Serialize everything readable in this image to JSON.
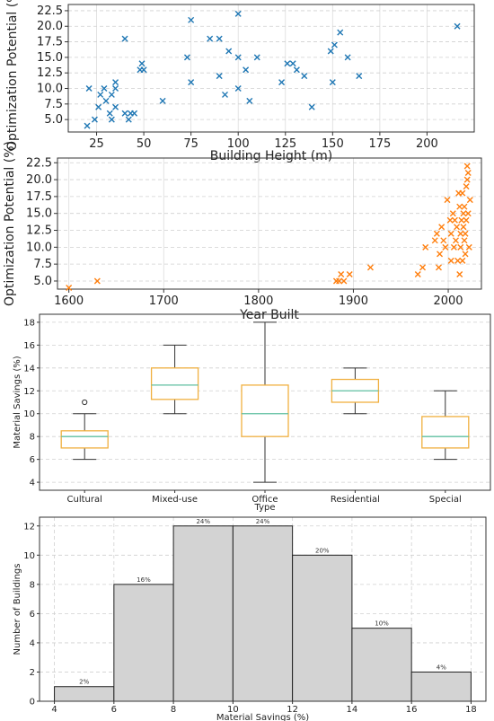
{
  "chart_data": [
    {
      "type": "scatter",
      "xlabel": "Building Height (m)",
      "ylabel": "Optimization Potential (%)",
      "xlim": [
        10,
        225
      ],
      "ylim": [
        3,
        23.5
      ],
      "xticks": [
        25,
        50,
        75,
        100,
        125,
        150,
        175,
        200
      ],
      "yticks": [
        5.0,
        7.5,
        10.0,
        12.5,
        15.0,
        17.5,
        20.0,
        22.5
      ],
      "color": "#1f77b4",
      "marker": "x",
      "points": [
        [
          20,
          4
        ],
        [
          21,
          10
        ],
        [
          24,
          5
        ],
        [
          26,
          7
        ],
        [
          27,
          9
        ],
        [
          29,
          10
        ],
        [
          30,
          8
        ],
        [
          32,
          6
        ],
        [
          33,
          5
        ],
        [
          33,
          9
        ],
        [
          35,
          11
        ],
        [
          35,
          10
        ],
        [
          35,
          7
        ],
        [
          40,
          18
        ],
        [
          40,
          6
        ],
        [
          42,
          5
        ],
        [
          43,
          6
        ],
        [
          45,
          6
        ],
        [
          48,
          13
        ],
        [
          49,
          14
        ],
        [
          50,
          13
        ],
        [
          60,
          8
        ],
        [
          73,
          15
        ],
        [
          75,
          21
        ],
        [
          75,
          11
        ],
        [
          85,
          18
        ],
        [
          90,
          18
        ],
        [
          90,
          12
        ],
        [
          93,
          9
        ],
        [
          95,
          16
        ],
        [
          100,
          22
        ],
        [
          100,
          15
        ],
        [
          100,
          10
        ],
        [
          104,
          13
        ],
        [
          106,
          8
        ],
        [
          110,
          15
        ],
        [
          123,
          11
        ],
        [
          126,
          14
        ],
        [
          129,
          14
        ],
        [
          131,
          13
        ],
        [
          135,
          12
        ],
        [
          139,
          7
        ],
        [
          149,
          16
        ],
        [
          150,
          11
        ],
        [
          151,
          17
        ],
        [
          154,
          19
        ],
        [
          158,
          15
        ],
        [
          164,
          12
        ],
        [
          216,
          20
        ]
      ]
    },
    {
      "type": "scatter",
      "xlabel": "Year Built",
      "ylabel": "Optimization Potential (%)",
      "xlim": [
        1588,
        2035
      ],
      "ylim": [
        3.8,
        23.2
      ],
      "xticks": [
        1600,
        1700,
        1800,
        1900,
        2000
      ],
      "yticks": [
        5.0,
        7.5,
        10.0,
        12.5,
        15.0,
        17.5,
        20.0,
        22.5
      ],
      "color": "#ff7f0e",
      "marker": "x",
      "points": [
        [
          1600,
          4
        ],
        [
          1630,
          5
        ],
        [
          1882,
          5
        ],
        [
          1885,
          5
        ],
        [
          1887,
          6
        ],
        [
          1890,
          5
        ],
        [
          1896,
          6
        ],
        [
          1918,
          7
        ],
        [
          1968,
          6
        ],
        [
          1973,
          7
        ],
        [
          1976,
          10
        ],
        [
          1986,
          11
        ],
        [
          1988,
          12
        ],
        [
          1990,
          7
        ],
        [
          1991,
          9
        ],
        [
          1993,
          13
        ],
        [
          1995,
          11
        ],
        [
          1997,
          10
        ],
        [
          1999,
          17
        ],
        [
          2002,
          14
        ],
        [
          2003,
          8
        ],
        [
          2003,
          12
        ],
        [
          2005,
          15
        ],
        [
          2006,
          10
        ],
        [
          2007,
          14
        ],
        [
          2008,
          11
        ],
        [
          2009,
          13
        ],
        [
          2010,
          8
        ],
        [
          2011,
          18
        ],
        [
          2012,
          16
        ],
        [
          2012,
          6
        ],
        [
          2013,
          12
        ],
        [
          2013,
          10
        ],
        [
          2014,
          14
        ],
        [
          2015,
          18
        ],
        [
          2015,
          8
        ],
        [
          2016,
          13
        ],
        [
          2016,
          15
        ],
        [
          2017,
          11
        ],
        [
          2017,
          16
        ],
        [
          2018,
          12
        ],
        [
          2018,
          9
        ],
        [
          2019,
          14
        ],
        [
          2019,
          19
        ],
        [
          2020,
          20
        ],
        [
          2020,
          22
        ],
        [
          2021,
          21
        ],
        [
          2021,
          15
        ],
        [
          2022,
          10
        ],
        [
          2023,
          17
        ]
      ]
    },
    {
      "type": "box",
      "xlabel": "Type",
      "ylabel": "Material Savings (%)",
      "ylim": [
        3.3,
        18.7
      ],
      "yticks": [
        4,
        6,
        8,
        10,
        12,
        14,
        16,
        18
      ],
      "categories": [
        "Cultural",
        "Mixed-use",
        "Office",
        "Residential",
        "Special"
      ],
      "box_color": "#f0b040",
      "median_color": "#5fbfa0",
      "boxes": [
        {
          "whislo": 6,
          "q1": 7,
          "med": 8,
          "q3": 8.5,
          "whishi": 10,
          "fliers": [
            11
          ]
        },
        {
          "whislo": 10,
          "q1": 11.25,
          "med": 12.5,
          "q3": 14,
          "whishi": 16,
          "fliers": []
        },
        {
          "whislo": 4,
          "q1": 8,
          "med": 10,
          "q3": 12.5,
          "whishi": 18,
          "fliers": []
        },
        {
          "whislo": 10,
          "q1": 11,
          "med": 12,
          "q3": 13,
          "whishi": 14,
          "fliers": []
        },
        {
          "whislo": 6,
          "q1": 7,
          "med": 8,
          "q3": 9.75,
          "whishi": 12,
          "fliers": []
        }
      ]
    },
    {
      "type": "bar",
      "xlabel": "Material Savings (%)",
      "ylabel": "Number of Buildings",
      "xlim": [
        3.5,
        18.5
      ],
      "ylim": [
        0,
        12.6
      ],
      "xticks": [
        4,
        6,
        8,
        10,
        12,
        14,
        16,
        18
      ],
      "yticks": [
        0,
        2,
        4,
        6,
        8,
        10,
        12
      ],
      "bar_color": "#d3d3d3",
      "bins": [
        {
          "from": 4,
          "to": 6,
          "count": 1,
          "label": "2%"
        },
        {
          "from": 6,
          "to": 8,
          "count": 8,
          "label": "16%"
        },
        {
          "from": 8,
          "to": 10,
          "count": 12,
          "label": "24%"
        },
        {
          "from": 10,
          "to": 12,
          "count": 12,
          "label": "24%"
        },
        {
          "from": 12,
          "to": 14,
          "count": 10,
          "label": "20%"
        },
        {
          "from": 14,
          "to": 16,
          "count": 5,
          "label": "10%"
        },
        {
          "from": 16,
          "to": 18,
          "count": 2,
          "label": "4%"
        }
      ]
    }
  ]
}
